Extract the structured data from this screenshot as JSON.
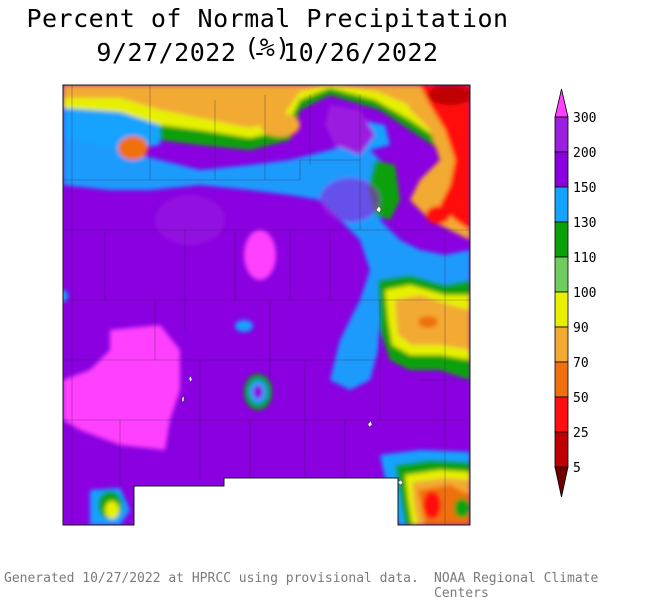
{
  "title": {
    "line1": "Percent of Normal Precipitation (%)",
    "line2": "9/27/2022 - 10/26/2022"
  },
  "legend": {
    "levels": [
      {
        "label": "300",
        "color": "#ff40ff"
      },
      {
        "label": "200",
        "color": "#9b1fe0"
      },
      {
        "label": "150",
        "color": "#8a00e0"
      },
      {
        "label": "130",
        "color": "#14a3ff"
      },
      {
        "label": "110",
        "color": "#0aa00a"
      },
      {
        "label": "100",
        "color": "#70cc5c"
      },
      {
        "label": "90",
        "color": "#e6f000"
      },
      {
        "label": "70",
        "color": "#f2aa30"
      },
      {
        "label": "50",
        "color": "#f07010"
      },
      {
        "label": "25",
        "color": "#ff1010"
      },
      {
        "label": "5",
        "color": "#c00000"
      }
    ],
    "bottom_color": "#700000"
  },
  "footer": {
    "generated": "Generated 10/27/2022 at HPRCC using provisional data.",
    "credit": "NOAA Regional Climate Centers"
  }
}
